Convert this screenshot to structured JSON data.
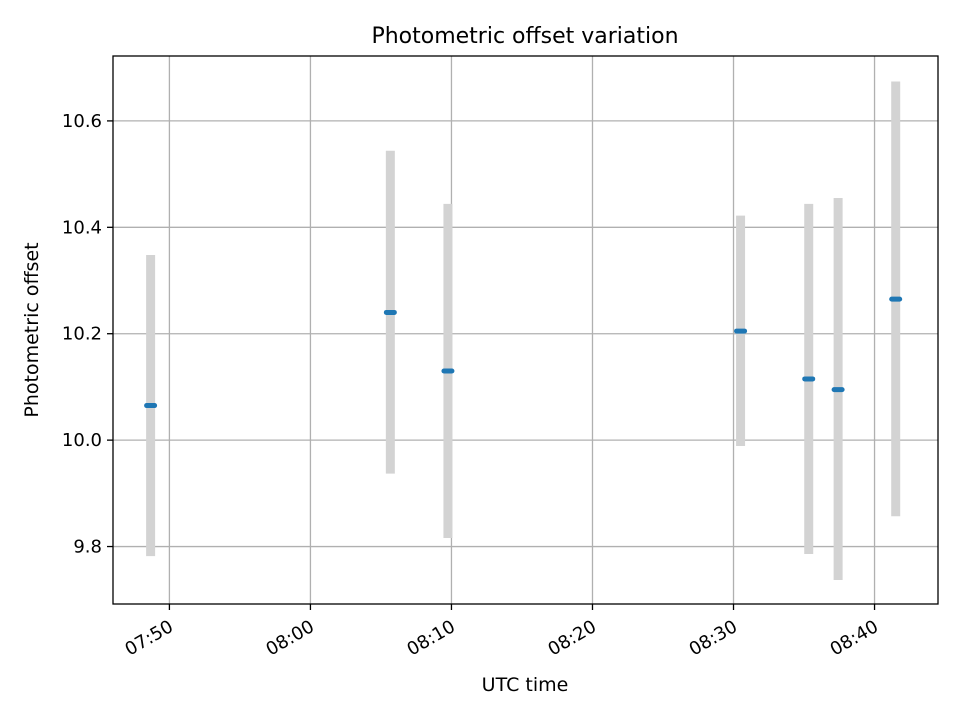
{
  "chart_data": {
    "type": "scatter",
    "title": "Photometric offset variation",
    "xlabel": "UTC time",
    "ylabel": "Photometric offset",
    "x_tick_labels": [
      "07:50",
      "08:00",
      "08:10",
      "08:20",
      "08:30",
      "08:40"
    ],
    "y_tick_labels": [
      "9.8",
      "10.0",
      "10.2",
      "10.4",
      "10.6"
    ],
    "grid": true,
    "series": [
      {
        "points": [
          {
            "x": "07:48:40",
            "y": 10.065,
            "err_low": 9.782,
            "err_high": 10.348
          },
          {
            "x": "08:05:40",
            "y": 10.24,
            "err_low": 9.937,
            "err_high": 10.544
          },
          {
            "x": "08:09:45",
            "y": 10.13,
            "err_low": 9.816,
            "err_high": 10.444
          },
          {
            "x": "08:30:30",
            "y": 10.205,
            "err_low": 9.989,
            "err_high": 10.422
          },
          {
            "x": "08:35:20",
            "y": 10.115,
            "err_low": 9.786,
            "err_high": 10.444
          },
          {
            "x": "08:37:25",
            "y": 10.095,
            "err_low": 9.737,
            "err_high": 10.455
          },
          {
            "x": "08:41:30",
            "y": 10.265,
            "err_low": 9.857,
            "err_high": 10.674
          }
        ]
      }
    ],
    "xlim": [
      "07:46:00",
      "08:44:30"
    ],
    "ylim": [
      9.692,
      10.722
    ],
    "colors": {
      "marker": "#1f77b4",
      "errorbar": "#d3d3d3",
      "grid": "#b0b0b0",
      "axes": "#000000"
    }
  }
}
